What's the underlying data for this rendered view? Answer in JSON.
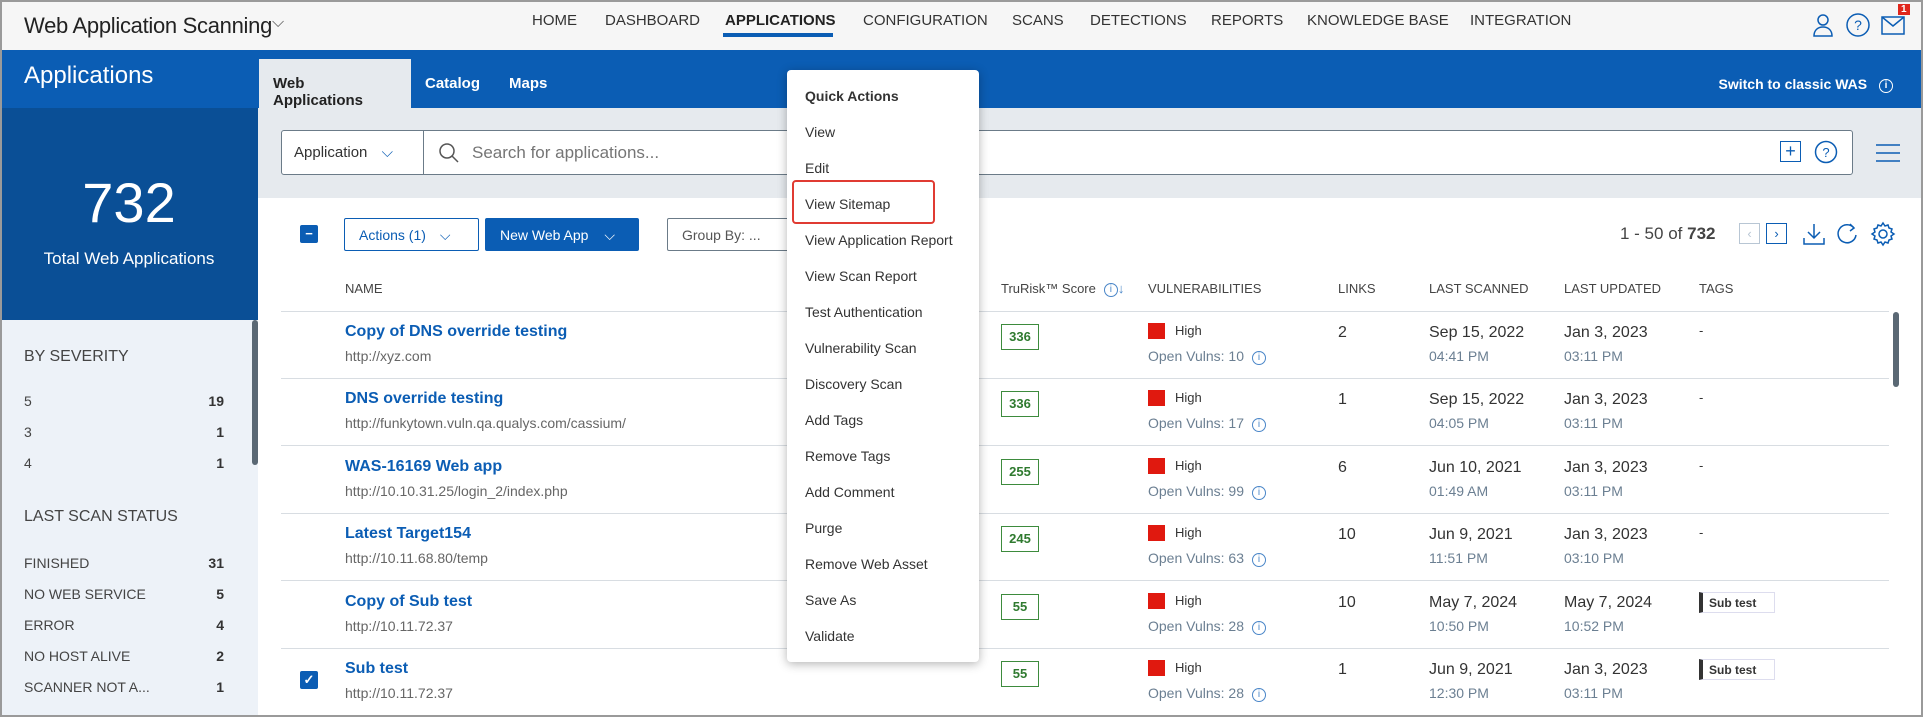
{
  "header": {
    "app_title": "Web Application Scanning",
    "nav": [
      "HOME",
      "DASHBOARD",
      "APPLICATIONS",
      "CONFIGURATION",
      "SCANS",
      "DETECTIONS",
      "REPORTS",
      "KNOWLEDGE BASE",
      "INTEGRATION"
    ],
    "active_nav": "APPLICATIONS",
    "mail_badge": "1"
  },
  "sidebar": {
    "title": "Applications",
    "total": "732",
    "total_label": "Total Web Applications",
    "severity_title": "BY SEVERITY",
    "severity": [
      {
        "label": "5",
        "count": "19"
      },
      {
        "label": "3",
        "count": "1"
      },
      {
        "label": "4",
        "count": "1"
      }
    ],
    "status_title": "LAST SCAN STATUS",
    "status": [
      {
        "label": "FINISHED",
        "count": "31"
      },
      {
        "label": "NO WEB SERVICE",
        "count": "5"
      },
      {
        "label": "ERROR",
        "count": "4"
      },
      {
        "label": "NO HOST ALIVE",
        "count": "2"
      },
      {
        "label": "SCANNER NOT A...",
        "count": "1"
      }
    ]
  },
  "tabs": [
    "Web Applications",
    "Catalog",
    "Maps"
  ],
  "switch_label": "Switch to classic WAS",
  "search": {
    "filter": "Application",
    "placeholder": "Search for applications..."
  },
  "toolbar": {
    "actions": "Actions (1)",
    "new": "New Web App",
    "group": "Group By: ...",
    "pager_range": "1 - 50 of",
    "pager_total": "732"
  },
  "columns": [
    "NAME",
    "TruRisk™ Score",
    "VULNERABILITIES",
    "LINKS",
    "LAST SCANNED",
    "LAST UPDATED",
    "TAGS"
  ],
  "rows": [
    {
      "name": "Copy of DNS override testing",
      "url": "http://xyz.com",
      "score": "336",
      "severity": "High",
      "open": "Open Vulns: 10",
      "links": "2",
      "scanned_date": "Sep 15, 2022",
      "scanned_time": "04:41 PM",
      "updated_date": "Jan 3, 2023",
      "updated_time": "03:11 PM",
      "tags": "-",
      "checked": false
    },
    {
      "name": "DNS override testing",
      "url": "http://funkytown.vuln.qa.qualys.com/cassium/",
      "score": "336",
      "severity": "High",
      "open": "Open Vulns: 17",
      "links": "1",
      "scanned_date": "Sep 15, 2022",
      "scanned_time": "04:05 PM",
      "updated_date": "Jan 3, 2023",
      "updated_time": "03:11 PM",
      "tags": "-",
      "checked": false
    },
    {
      "name": "WAS-16169 Web app",
      "url": "http://10.10.31.25/login_2/index.php",
      "score": "255",
      "severity": "High",
      "open": "Open Vulns: 99",
      "links": "6",
      "scanned_date": "Jun 10, 2021",
      "scanned_time": "01:49 AM",
      "updated_date": "Jan 3, 2023",
      "updated_time": "03:11 PM",
      "tags": "-",
      "checked": false
    },
    {
      "name": "Latest Target154",
      "url": "http://10.11.68.80/temp",
      "score": "245",
      "severity": "High",
      "open": "Open Vulns: 63",
      "links": "10",
      "scanned_date": "Jun 9, 2021",
      "scanned_time": "11:51 PM",
      "updated_date": "Jan 3, 2023",
      "updated_time": "03:10 PM",
      "tags": "-",
      "checked": false
    },
    {
      "name": "Copy of Sub test",
      "url": "http://10.11.72.37",
      "score": "55",
      "severity": "High",
      "open": "Open Vulns: 28",
      "links": "10",
      "scanned_date": "May 7, 2024",
      "scanned_time": "10:50 PM",
      "updated_date": "May 7, 2024",
      "updated_time": "10:52 PM",
      "tags": "Sub test",
      "checked": false
    },
    {
      "name": "Sub test",
      "url": "http://10.11.72.37",
      "score": "55",
      "severity": "High",
      "open": "Open Vulns: 28",
      "links": "1",
      "scanned_date": "Jun 9, 2021",
      "scanned_time": "12:30 PM",
      "updated_date": "Jan 3, 2023",
      "updated_time": "03:11 PM",
      "tags": "Sub test",
      "checked": true
    }
  ],
  "menu": {
    "title": "Quick Actions",
    "items": [
      "View",
      "Edit",
      "View Sitemap",
      "View Application Report",
      "View Scan Report",
      "Test Authentication",
      "Vulnerability Scan",
      "Discovery Scan",
      "Add Tags",
      "Remove Tags",
      "Add Comment",
      "Purge",
      "Remove Web Asset",
      "Save As",
      "Validate"
    ],
    "highlighted": "View Sitemap"
  },
  "colors": {
    "brand": "#0b5db4",
    "sidebar_dark": "#0a4f96",
    "severity_high": "#e0190f",
    "score": "#2f7a2f",
    "highlight": "#e03b32"
  }
}
